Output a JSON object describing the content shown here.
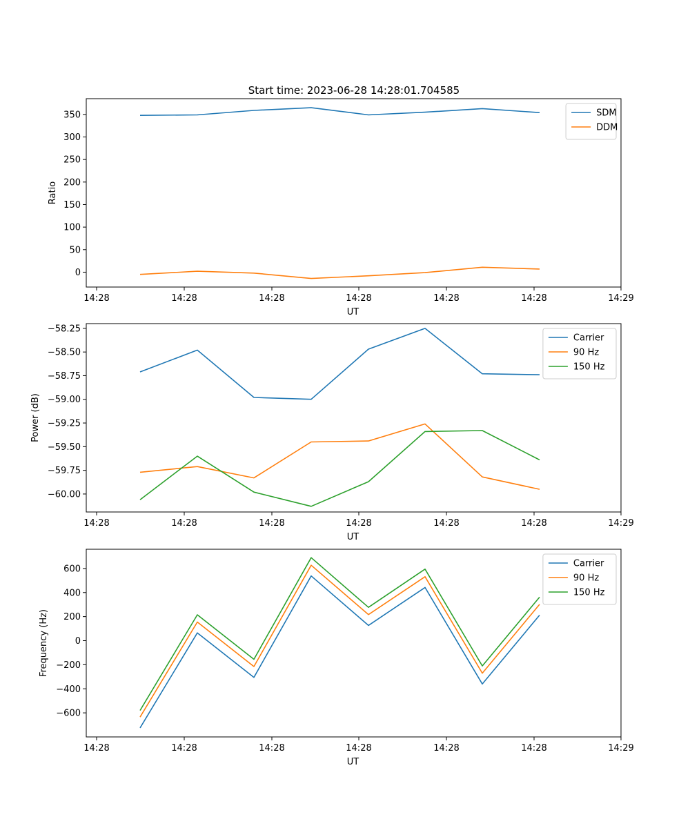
{
  "figure": {
    "title": "Start time: 2023-06-28 14:28:01.704585"
  },
  "chart_data": [
    {
      "type": "line",
      "title": "Start time: 2023-06-28 14:28:01.704585",
      "xlabel": "UT",
      "ylabel": "Ratio",
      "ylim": [
        -33,
        385
      ],
      "yticks": [
        0,
        50,
        100,
        150,
        200,
        250,
        300,
        350
      ],
      "xtick_labels": [
        "14:28",
        "14:28",
        "14:28",
        "14:28",
        "14:28",
        "14:28",
        "14:28",
        "14:29"
      ],
      "legend_position": "upper right",
      "grid": false,
      "series": [
        {
          "name": "SDM",
          "color": "#1f77b4",
          "values": [
            348,
            349,
            359,
            365,
            349,
            355,
            363,
            354
          ]
        },
        {
          "name": "DDM",
          "color": "#ff7f0e",
          "values": [
            -5,
            2,
            -2,
            -14,
            -8,
            -1,
            11,
            7
          ]
        }
      ]
    },
    {
      "type": "line",
      "title": "",
      "xlabel": "UT",
      "ylabel": "Power (dB)",
      "ylim": [
        -60.19,
        -58.2
      ],
      "yticks": [
        -60.0,
        -59.75,
        -59.5,
        -59.25,
        -59.0,
        -58.75,
        -58.5,
        -58.25
      ],
      "xtick_labels": [
        "14:28",
        "14:28",
        "14:28",
        "14:28",
        "14:28",
        "14:28",
        "14:28",
        "14:29"
      ],
      "legend_position": "upper right",
      "grid": false,
      "series": [
        {
          "name": "Carrier",
          "color": "#1f77b4",
          "values": [
            -58.71,
            -58.48,
            -58.98,
            -59.0,
            -58.47,
            -58.25,
            -58.73,
            -58.74
          ]
        },
        {
          "name": "90 Hz",
          "color": "#ff7f0e",
          "values": [
            -59.77,
            -59.71,
            -59.83,
            -59.45,
            -59.44,
            -59.26,
            -59.82,
            -59.95
          ]
        },
        {
          "name": "150 Hz",
          "color": "#2ca02c",
          "values": [
            -60.06,
            -59.6,
            -59.98,
            -60.13,
            -59.87,
            -59.34,
            -59.33,
            -59.64
          ]
        }
      ]
    },
    {
      "type": "line",
      "title": "",
      "xlabel": "UT",
      "ylabel": "Frequency (Hz)",
      "ylim": [
        -800,
        760
      ],
      "yticks": [
        -600,
        -400,
        -200,
        0,
        200,
        400,
        600
      ],
      "xtick_labels": [
        "14:28",
        "14:28",
        "14:28",
        "14:28",
        "14:28",
        "14:28",
        "14:28",
        "14:29"
      ],
      "legend_position": "upper right",
      "grid": false,
      "series": [
        {
          "name": "Carrier",
          "color": "#1f77b4",
          "values": [
            -725,
            65,
            -305,
            538,
            127,
            442,
            -360,
            212
          ]
        },
        {
          "name": "90 Hz",
          "color": "#ff7f0e",
          "values": [
            -635,
            155,
            -215,
            627,
            217,
            532,
            -270,
            302
          ]
        },
        {
          "name": "150 Hz",
          "color": "#2ca02c",
          "values": [
            -580,
            215,
            -155,
            690,
            277,
            595,
            -210,
            362
          ]
        }
      ]
    }
  ]
}
